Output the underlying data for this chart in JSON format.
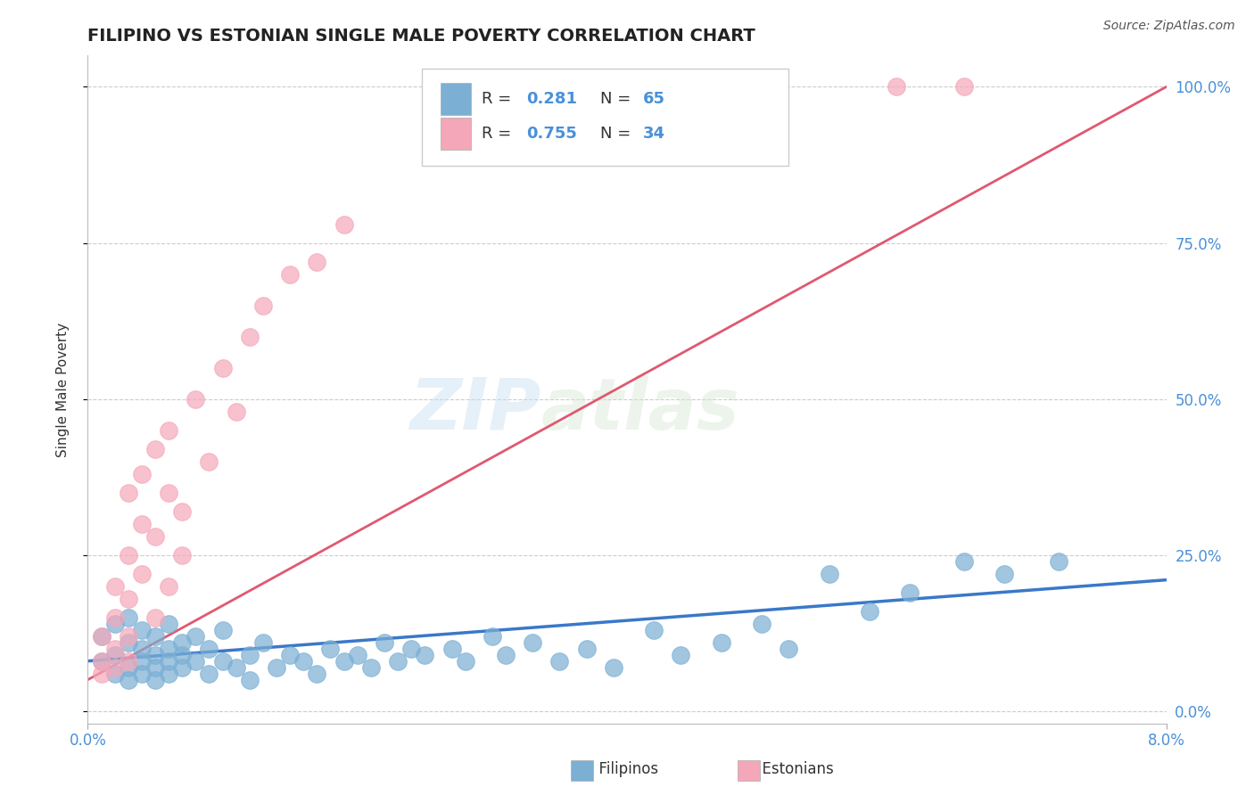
{
  "title": "FILIPINO VS ESTONIAN SINGLE MALE POVERTY CORRELATION CHART",
  "source": "Source: ZipAtlas.com",
  "ylabel": "Single Male Poverty",
  "xlim": [
    0.0,
    0.08
  ],
  "ylim": [
    -0.02,
    1.05
  ],
  "xticks": [
    0.0,
    0.08
  ],
  "xtick_labels": [
    "0.0%",
    "8.0%"
  ],
  "yticks": [
    0.0,
    0.25,
    0.5,
    0.75,
    1.0
  ],
  "ytick_labels": [
    "0.0%",
    "25.0%",
    "50.0%",
    "75.0%",
    "100.0%"
  ],
  "watermark_zip": "ZIP",
  "watermark_atlas": "atlas",
  "blue_color": "#7bafd4",
  "pink_color": "#f4a7b9",
  "blue_line_color": "#3a78c9",
  "pink_line_color": "#e05870",
  "legend_r_blue": "0.281",
  "legend_n_blue": "65",
  "legend_r_pink": "0.755",
  "legend_n_pink": "34",
  "blue_scatter_x": [
    0.001,
    0.001,
    0.002,
    0.002,
    0.002,
    0.003,
    0.003,
    0.003,
    0.003,
    0.004,
    0.004,
    0.004,
    0.004,
    0.005,
    0.005,
    0.005,
    0.005,
    0.006,
    0.006,
    0.006,
    0.006,
    0.007,
    0.007,
    0.007,
    0.008,
    0.008,
    0.009,
    0.009,
    0.01,
    0.01,
    0.011,
    0.012,
    0.012,
    0.013,
    0.014,
    0.015,
    0.016,
    0.017,
    0.018,
    0.019,
    0.02,
    0.021,
    0.022,
    0.023,
    0.024,
    0.025,
    0.027,
    0.028,
    0.03,
    0.031,
    0.033,
    0.035,
    0.037,
    0.039,
    0.042,
    0.044,
    0.047,
    0.05,
    0.052,
    0.055,
    0.058,
    0.061,
    0.065,
    0.068,
    0.072
  ],
  "blue_scatter_y": [
    0.12,
    0.08,
    0.14,
    0.09,
    0.06,
    0.11,
    0.07,
    0.05,
    0.15,
    0.1,
    0.08,
    0.13,
    0.06,
    0.09,
    0.07,
    0.12,
    0.05,
    0.1,
    0.08,
    0.14,
    0.06,
    0.09,
    0.07,
    0.11,
    0.08,
    0.12,
    0.06,
    0.1,
    0.08,
    0.13,
    0.07,
    0.09,
    0.05,
    0.11,
    0.07,
    0.09,
    0.08,
    0.06,
    0.1,
    0.08,
    0.09,
    0.07,
    0.11,
    0.08,
    0.1,
    0.09,
    0.1,
    0.08,
    0.12,
    0.09,
    0.11,
    0.08,
    0.1,
    0.07,
    0.13,
    0.09,
    0.11,
    0.14,
    0.1,
    0.22,
    0.16,
    0.19,
    0.24,
    0.22,
    0.24
  ],
  "pink_scatter_x": [
    0.001,
    0.001,
    0.001,
    0.002,
    0.002,
    0.002,
    0.002,
    0.003,
    0.003,
    0.003,
    0.003,
    0.003,
    0.004,
    0.004,
    0.004,
    0.005,
    0.005,
    0.005,
    0.006,
    0.006,
    0.006,
    0.007,
    0.007,
    0.008,
    0.009,
    0.01,
    0.011,
    0.012,
    0.013,
    0.015,
    0.017,
    0.019,
    0.06,
    0.065
  ],
  "pink_scatter_y": [
    0.08,
    0.12,
    0.06,
    0.15,
    0.1,
    0.2,
    0.07,
    0.18,
    0.12,
    0.25,
    0.35,
    0.08,
    0.22,
    0.3,
    0.38,
    0.15,
    0.28,
    0.42,
    0.2,
    0.35,
    0.45,
    0.25,
    0.32,
    0.5,
    0.4,
    0.55,
    0.48,
    0.6,
    0.65,
    0.7,
    0.72,
    0.78,
    1.0,
    1.0
  ],
  "pink_line_slope_x0": 0.0,
  "pink_line_slope_x1": 0.08,
  "pink_line_y0": 0.05,
  "pink_line_y1": 1.0,
  "blue_line_slope_x0": 0.0,
  "blue_line_slope_x1": 0.08,
  "blue_line_y0": 0.08,
  "blue_line_y1": 0.21
}
